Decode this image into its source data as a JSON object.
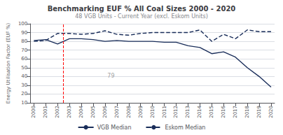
{
  "chart_data": {
    "type": "line",
    "title": "Benchmarking EUF % All Coal Sizes 2000 - 2020",
    "subtitle": "48 VGB Units - Current Year (excl. Eskom Units)",
    "ylabel": "Energy Utilisation Factor (EUF %)",
    "x": [
      2000,
      2001,
      2002,
      2003,
      2004,
      2005,
      2006,
      2007,
      2008,
      2009,
      2010,
      2011,
      2012,
      2013,
      2014,
      2015,
      2016,
      2017,
      2018,
      2019,
      2020
    ],
    "series": [
      {
        "name": "VGB Median",
        "color": "#1a2e5a",
        "line_style": "solid",
        "values": [
          81,
          82,
          77,
          83,
          83,
          82,
          80,
          81,
          80,
          80,
          80,
          79,
          79,
          75,
          73,
          66,
          68,
          62,
          50,
          40,
          28
        ]
      },
      {
        "name": "Eskom Median",
        "color": "#1a2e5a",
        "line_style": "dashed",
        "values": [
          80,
          81,
          89,
          89,
          88,
          89,
          92,
          88,
          87,
          89,
          90,
          90,
          90,
          90,
          93,
          80,
          88,
          83,
          93,
          91,
          91
        ]
      }
    ],
    "reference_lines": [
      {
        "x": 2002.5,
        "color": "#ff0000",
        "line_style": "dashed"
      }
    ],
    "annotations": [
      {
        "text": "79",
        "x": 2006.2,
        "y": 41,
        "color": "#888888"
      }
    ],
    "xlim": [
      1999.7,
      2020.3
    ],
    "xticks": [
      2000,
      2001,
      2002,
      2003,
      2004,
      2005,
      2006,
      2007,
      2008,
      2009,
      2010,
      2011,
      2012,
      2013,
      2014,
      2015,
      2016,
      2017,
      2018,
      2019,
      2020
    ],
    "ylim": [
      10,
      100
    ],
    "yticks": [
      10,
      20,
      30,
      40,
      50,
      60,
      70,
      80,
      90,
      100
    ],
    "grid": true,
    "legend": "bottom"
  }
}
